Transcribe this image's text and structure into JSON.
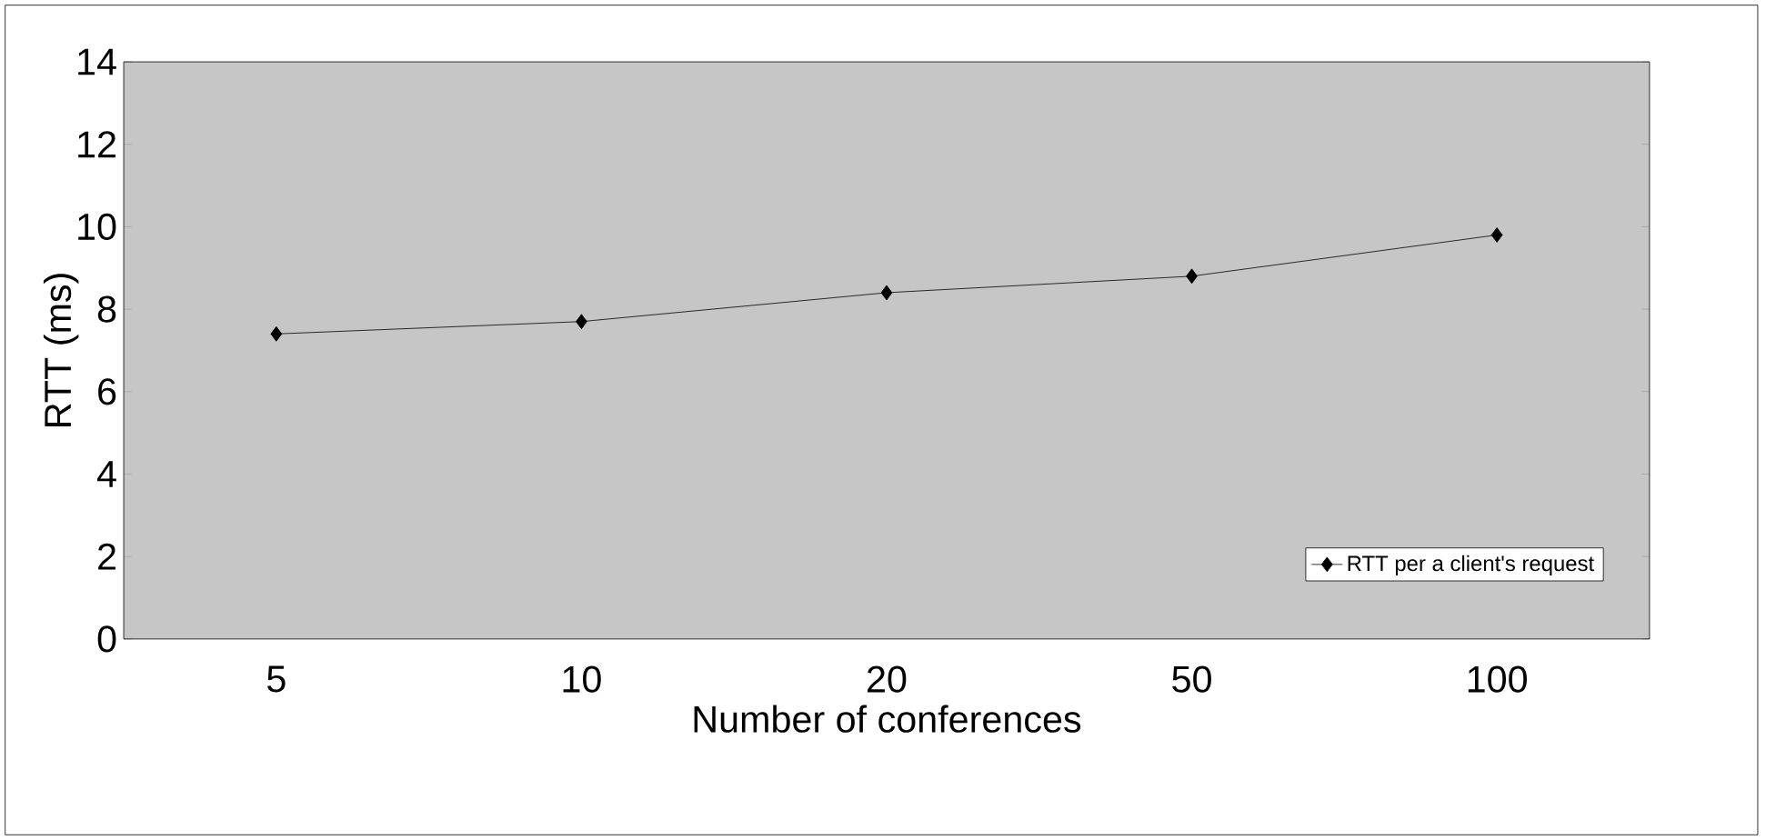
{
  "chart_data": {
    "type": "line",
    "xlabel": "Number of conferences",
    "ylabel": "RTT (ms)",
    "categories": [
      "5",
      "10",
      "20",
      "50",
      "100"
    ],
    "series": [
      {
        "name": "RTT per a client's request",
        "color": "#000000",
        "values": [
          7.4,
          7.7,
          8.4,
          8.8,
          9.8
        ]
      }
    ],
    "ylim": [
      0,
      14
    ],
    "yticks": [
      0,
      2,
      4,
      6,
      8,
      10,
      12,
      14
    ],
    "marker": "diamond",
    "legend": "bottom right",
    "grid": false
  }
}
